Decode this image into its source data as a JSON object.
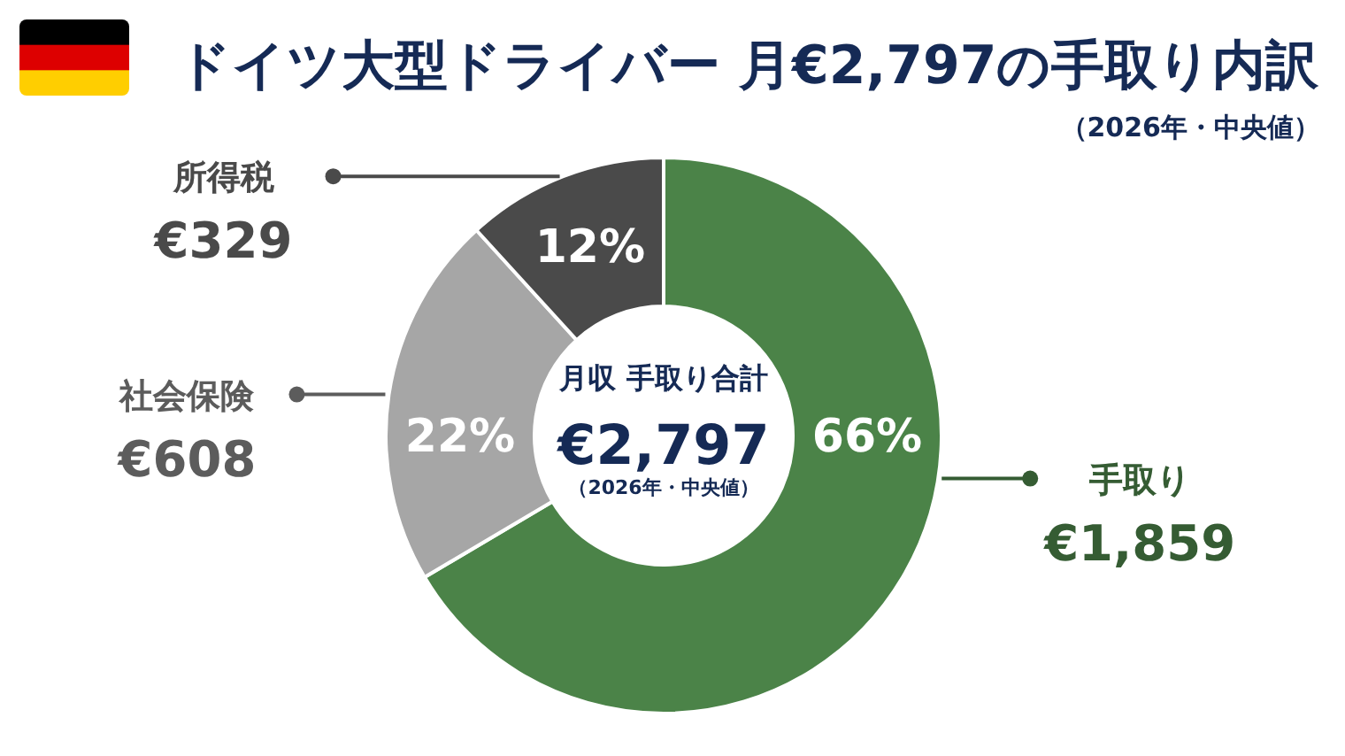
{
  "chart_data": {
    "type": "donut",
    "title": "ドイツ大型ドライバー 月€2,797の手取り内訳",
    "subtitle": "（2026年・中央値）",
    "categories": [
      "手取り",
      "社会保険",
      "所得税"
    ],
    "values": [
      1859,
      608,
      329
    ],
    "value_labels": [
      "€1,859",
      "€608",
      "€329"
    ],
    "colors": [
      "#4b8348",
      "#a6a6a6",
      "#4a4a4a"
    ],
    "annotations": [
      "66%",
      "22%",
      "12%",
      "月収 手取り合計",
      "€2,797",
      "（2026年・中央値）"
    ]
  }
}
